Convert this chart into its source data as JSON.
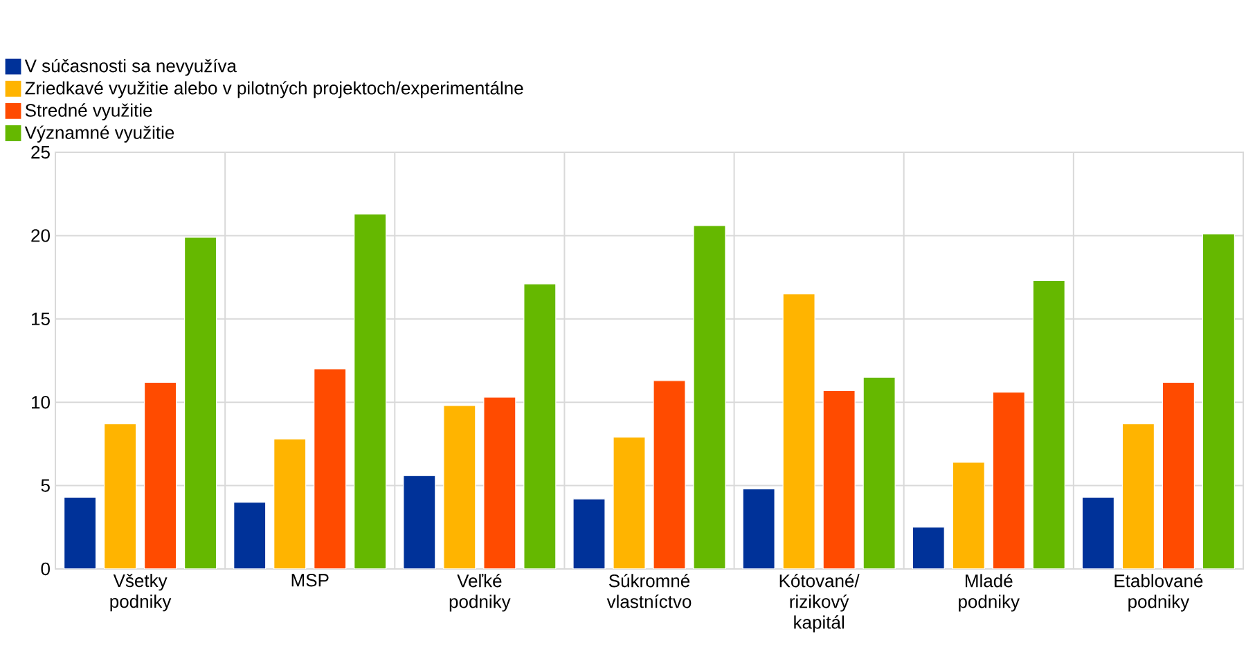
{
  "chart_data": {
    "type": "bar",
    "categories": [
      "Všetky podniky",
      "MSP",
      "Veľké podniky",
      "Súkromné vlastníctvo",
      "Kótované/ rizikový kapitál",
      "Mladé podniky",
      "Etablované podniky"
    ],
    "series": [
      {
        "name": "V súčasnosti sa nevyužíva",
        "color": "#003299",
        "values": [
          4.3,
          4.0,
          5.6,
          4.2,
          4.8,
          2.5,
          4.3
        ]
      },
      {
        "name": "Zriedkavé využitie alebo v pilotných projektoch/experimentálne",
        "color": "#ffb400",
        "values": [
          8.7,
          7.8,
          9.8,
          7.9,
          16.5,
          6.4,
          8.7
        ]
      },
      {
        "name": "Stredné využitie",
        "color": "#ff4b00",
        "values": [
          11.2,
          12.0,
          10.3,
          11.3,
          10.7,
          10.6,
          11.2
        ]
      },
      {
        "name": "Významné využitie",
        "color": "#65b800",
        "values": [
          19.9,
          21.3,
          17.1,
          20.6,
          11.5,
          17.3,
          20.1
        ]
      }
    ],
    "ylim": [
      0,
      25
    ],
    "yticks": [
      0,
      5,
      10,
      15,
      20,
      25
    ],
    "grid": true,
    "legend": "top left"
  }
}
